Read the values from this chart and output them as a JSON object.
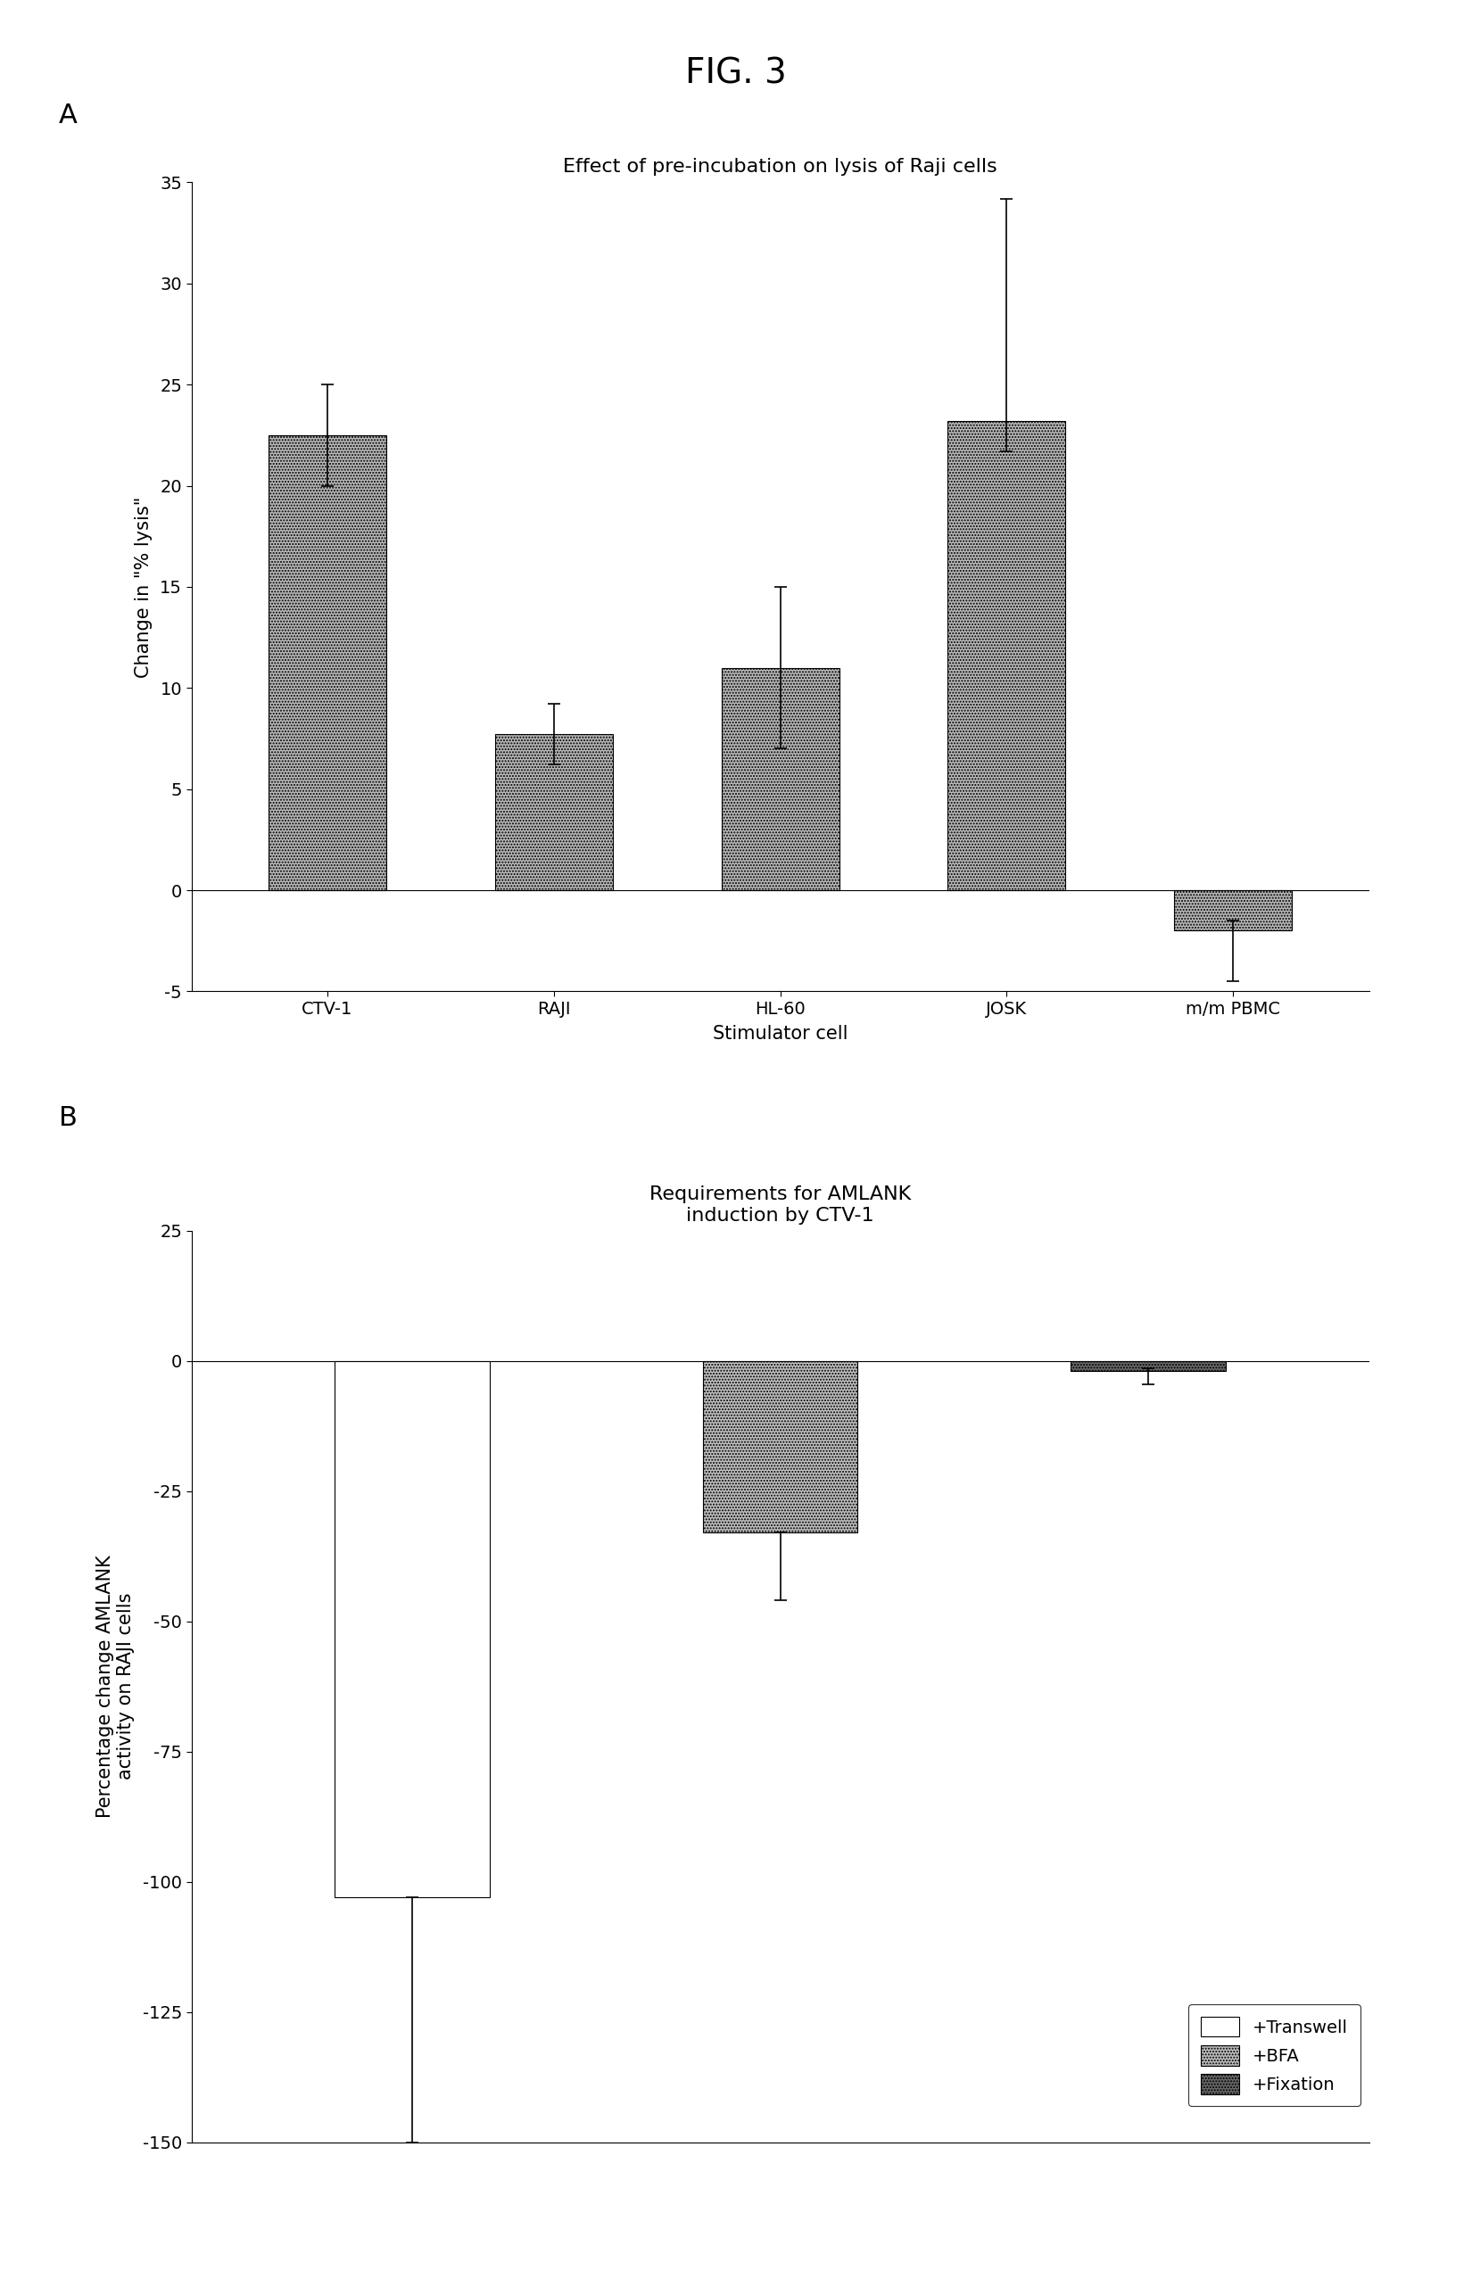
{
  "fig_title": "FIG. 3",
  "panel_a": {
    "label": "A",
    "title": "Effect of pre-incubation on lysis of Raji cells",
    "categories": [
      "CTV-1",
      "RAJI",
      "HL-60",
      "JOSK",
      "m/m PBMC"
    ],
    "values": [
      22.5,
      7.7,
      11.0,
      23.2,
      -2.0
    ],
    "errors_plus": [
      2.5,
      1.5,
      4.0,
      11.0,
      0.5
    ],
    "errors_minus": [
      2.5,
      1.5,
      4.0,
      1.5,
      2.5
    ],
    "ylabel": "Change in \"% lysis\"",
    "xlabel": "Stimulator cell",
    "ylim": [
      -5,
      35
    ],
    "yticks": [
      -5,
      0,
      5,
      10,
      15,
      20,
      25,
      30,
      35
    ],
    "bar_color": "#b8b8b8",
    "bar_hatch": ".....",
    "bar_edgecolor": "#000000"
  },
  "panel_b": {
    "label": "B",
    "title": "Requirements for AMLANK\ninduction by CTV-1",
    "categories": [
      "+Transwell",
      "+BFA",
      "+Fixation"
    ],
    "values": [
      -103.0,
      -33.0,
      -2.0
    ],
    "errors_plus": [
      0.0,
      0.0,
      0.5
    ],
    "errors_minus": [
      47.0,
      13.0,
      2.5
    ],
    "ylabel": "Percentage change AMLANK\nactivity on RAJI cells",
    "ylim": [
      -150,
      25
    ],
    "yticks": [
      -150,
      -125,
      -100,
      -75,
      -50,
      -25,
      0,
      25
    ],
    "bar_colors": [
      "#ffffff",
      "#c0c0c0",
      "#686868"
    ],
    "bar_hatches": [
      "",
      ".....",
      "....."
    ],
    "bar_edgecolors": [
      "#000000",
      "#000000",
      "#000000"
    ],
    "legend_labels": [
      "+Transwell",
      "+BFA",
      "+Fixation"
    ],
    "legend_hatches": [
      "",
      ".....",
      "....."
    ],
    "legend_facecolors": [
      "#ffffff",
      "#c0c0c0",
      "#686868"
    ]
  },
  "background_color": "#ffffff",
  "fig_title_fontsize": 28,
  "panel_label_fontsize": 22,
  "subtitle_fontsize": 16,
  "tick_fontsize": 14,
  "axis_label_fontsize": 15,
  "legend_fontsize": 14
}
